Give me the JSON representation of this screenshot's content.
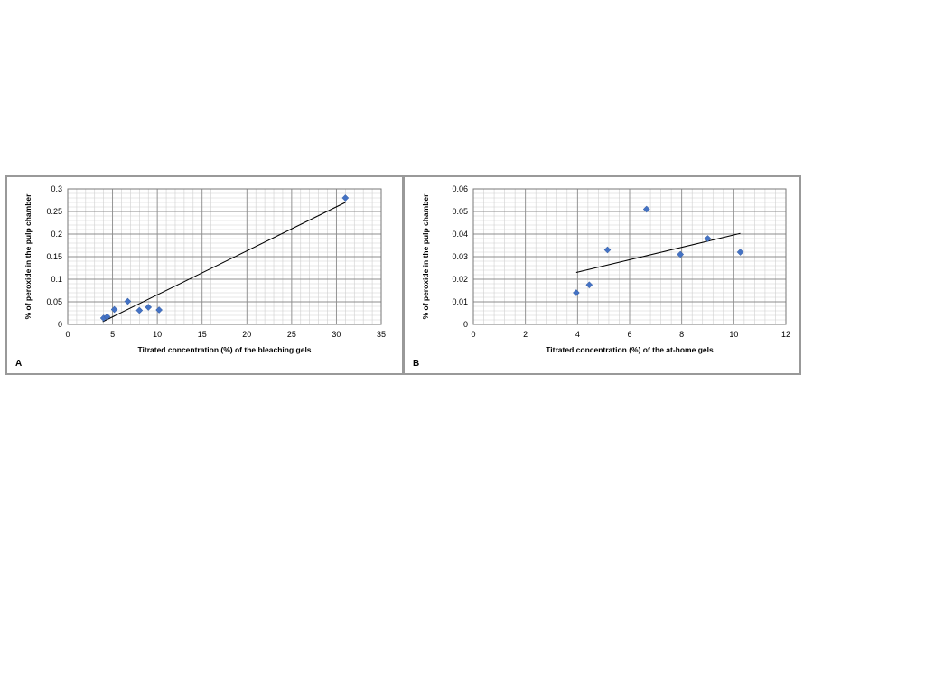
{
  "chart_data": [
    {
      "type": "scatter",
      "panel_label": "A",
      "title": "",
      "xlabel": "Titrated concentration  (%) of the  bleaching  gels",
      "ylabel": "% of peroxide in the  pulp chamber",
      "xlim": [
        0,
        35
      ],
      "ylim": [
        0,
        0.3
      ],
      "xticks": [
        0,
        5,
        10,
        15,
        20,
        25,
        30,
        35
      ],
      "yticks": [
        0,
        0.05,
        0.1,
        0.15,
        0.2,
        0.25,
        0.3
      ],
      "ytick_labels": [
        "0",
        "0.05",
        "0.1",
        "0.15",
        "0.2",
        "0.25",
        "0.3"
      ],
      "x_minor_step": 1,
      "y_minor_step": 0.01,
      "grid": true,
      "marker_color": "#4472C4",
      "points": [
        {
          "x": 4.0,
          "y": 0.014
        },
        {
          "x": 4.4,
          "y": 0.017
        },
        {
          "x": 5.2,
          "y": 0.033
        },
        {
          "x": 6.7,
          "y": 0.051
        },
        {
          "x": 8.0,
          "y": 0.031
        },
        {
          "x": 9.0,
          "y": 0.038
        },
        {
          "x": 10.2,
          "y": 0.032
        },
        {
          "x": 31.0,
          "y": 0.28
        }
      ],
      "trendline": {
        "x": [
          3.9,
          31.0
        ],
        "y": [
          0.006,
          0.27
        ]
      }
    },
    {
      "type": "scatter",
      "panel_label": "B",
      "title": "",
      "xlabel": "Titrated concentration  (%) of the  at-home gels",
      "ylabel": "% of peroxide in the  pulp chamber",
      "xlim": [
        0,
        12
      ],
      "ylim": [
        0,
        0.06
      ],
      "xticks": [
        0,
        2,
        4,
        6,
        8,
        10,
        12
      ],
      "yticks": [
        0,
        0.01,
        0.02,
        0.03,
        0.04,
        0.05,
        0.06
      ],
      "ytick_labels": [
        "0",
        "0.01",
        "0.02",
        "0.03",
        "0.04",
        "0.05",
        "0.06"
      ],
      "x_minor_step": 0.4,
      "y_minor_step": 0.002,
      "grid": true,
      "marker_color": "#4472C4",
      "points": [
        {
          "x": 3.95,
          "y": 0.014
        },
        {
          "x": 4.45,
          "y": 0.0175
        },
        {
          "x": 5.15,
          "y": 0.033
        },
        {
          "x": 6.65,
          "y": 0.051
        },
        {
          "x": 7.95,
          "y": 0.031
        },
        {
          "x": 9.0,
          "y": 0.038
        },
        {
          "x": 10.25,
          "y": 0.032
        }
      ],
      "trendline": {
        "x": [
          3.95,
          10.25
        ],
        "y": [
          0.023,
          0.0403
        ]
      }
    }
  ]
}
